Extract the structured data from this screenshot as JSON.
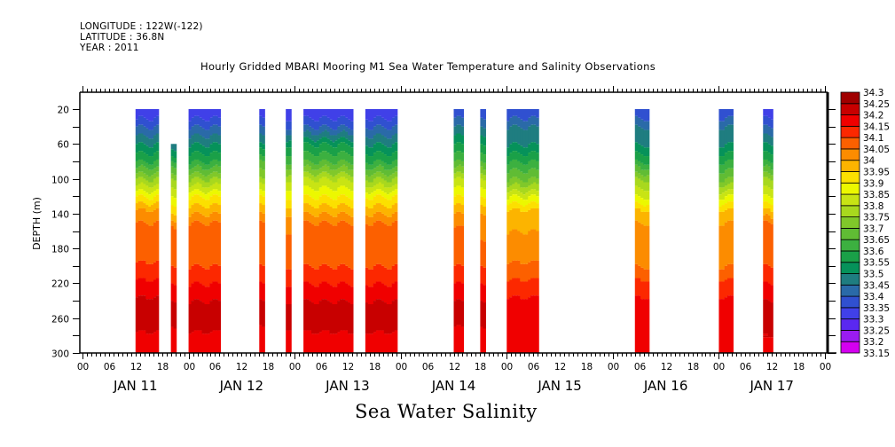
{
  "header": {
    "longitude": "LONGITUDE : 122W(-122)",
    "latitude": "LATITUDE : 36.8N",
    "year": "YEAR : 2011"
  },
  "chart_data": {
    "type": "heatmap",
    "title": "Hourly Gridded MBARI Mooring M1 Sea Water Temperature and Salinity Observations",
    "bottom_title": "Sea Water Salinity",
    "xlabel": "",
    "ylabel": "DEPTH (m)",
    "y_range": [
      0,
      300
    ],
    "y_inverted": true,
    "y_ticks": [
      20,
      60,
      100,
      140,
      180,
      220,
      260,
      300
    ],
    "x_range_hours": [
      0,
      168
    ],
    "x_tick_hours": [
      "00",
      "06",
      "12",
      "18"
    ],
    "x_days": [
      "JAN 11",
      "JAN 12",
      "JAN 13",
      "JAN 14",
      "JAN 15",
      "JAN 16",
      "JAN 17"
    ],
    "x_end_label": "00",
    "colorbar": {
      "levels": [
        33.15,
        33.2,
        33.25,
        33.3,
        33.35,
        33.4,
        33.45,
        33.5,
        33.55,
        33.6,
        33.65,
        33.7,
        33.75,
        33.8,
        33.85,
        33.9,
        33.95,
        34,
        34.05,
        34.1,
        34.15,
        34.2,
        34.25,
        34.3
      ],
      "labels": [
        "33.15",
        "33.2",
        "33.25",
        "33.3",
        "33.35",
        "33.4",
        "33.45",
        "33.5",
        "33.55",
        "33.6",
        "33.65",
        "33.7",
        "33.75",
        "33.8",
        "33.85",
        "33.9",
        "33.95",
        "34",
        "34.05",
        "34.1",
        "34.15",
        "34.2",
        "34.25",
        "34.3"
      ],
      "colors": [
        "#d400f0",
        "#9a1cf0",
        "#5a28f0",
        "#4040e8",
        "#3050d0",
        "#2a6aa8",
        "#1f7d80",
        "#06925a",
        "#1aa048",
        "#3cb040",
        "#60bc34",
        "#80c82a",
        "#a8d81e",
        "#c8e414",
        "#ecf800",
        "#fce000",
        "#fcb400",
        "#fc8c00",
        "#fc6000",
        "#fc2800",
        "#f00000",
        "#c80000",
        "#a00000"
      ]
    },
    "data_segments": [
      {
        "start_hour": 12,
        "end_hour": 17,
        "top_depth": 20,
        "profile": [
          [
            20,
            33.3
          ],
          [
            40,
            33.4
          ],
          [
            60,
            33.5
          ],
          [
            80,
            33.6
          ],
          [
            100,
            33.75
          ],
          [
            120,
            33.9
          ],
          [
            135,
            34.0
          ],
          [
            150,
            34.05
          ],
          [
            195,
            34.1
          ],
          [
            215,
            34.15
          ],
          [
            235,
            34.2
          ],
          [
            275,
            34.2
          ],
          [
            300,
            34.15
          ]
        ]
      },
      {
        "start_hour": 20,
        "end_hour": 21,
        "top_depth": 60,
        "profile": [
          [
            60,
            33.45
          ],
          [
            80,
            33.6
          ],
          [
            100,
            33.75
          ],
          [
            120,
            33.85
          ],
          [
            140,
            33.95
          ],
          [
            155,
            34.05
          ],
          [
            200,
            34.1
          ],
          [
            220,
            34.15
          ],
          [
            240,
            34.2
          ],
          [
            270,
            34.2
          ],
          [
            300,
            34.15
          ]
        ]
      },
      {
        "start_hour": 24,
        "end_hour": 31,
        "top_depth": 20,
        "profile": [
          [
            20,
            33.3
          ],
          [
            40,
            33.4
          ],
          [
            60,
            33.5
          ],
          [
            80,
            33.6
          ],
          [
            100,
            33.75
          ],
          [
            120,
            33.9
          ],
          [
            140,
            34.0
          ],
          [
            150,
            34.05
          ],
          [
            200,
            34.1
          ],
          [
            220,
            34.15
          ],
          [
            240,
            34.2
          ],
          [
            275,
            34.2
          ],
          [
            300,
            34.15
          ]
        ]
      },
      {
        "start_hour": 40,
        "end_hour": 41,
        "top_depth": 20,
        "profile": [
          [
            20,
            33.3
          ],
          [
            40,
            33.4
          ],
          [
            60,
            33.5
          ],
          [
            80,
            33.65
          ],
          [
            100,
            33.75
          ],
          [
            120,
            33.9
          ],
          [
            140,
            34.0
          ],
          [
            150,
            34.05
          ],
          [
            200,
            34.1
          ],
          [
            220,
            34.15
          ],
          [
            240,
            34.2
          ],
          [
            270,
            34.2
          ],
          [
            300,
            34.15
          ]
        ]
      },
      {
        "start_hour": 46,
        "end_hour": 47,
        "top_depth": 20,
        "profile": [
          [
            20,
            33.3
          ],
          [
            40,
            33.4
          ],
          [
            60,
            33.55
          ],
          [
            80,
            33.65
          ],
          [
            100,
            33.8
          ],
          [
            120,
            33.9
          ],
          [
            140,
            34.0
          ],
          [
            160,
            34.05
          ],
          [
            200,
            34.1
          ],
          [
            220,
            34.15
          ],
          [
            240,
            34.2
          ],
          [
            270,
            34.2
          ],
          [
            300,
            34.15
          ]
        ]
      },
      {
        "start_hour": 50,
        "end_hour": 61,
        "top_depth": 20,
        "profile": [
          [
            20,
            33.3
          ],
          [
            40,
            33.4
          ],
          [
            60,
            33.55
          ],
          [
            80,
            33.65
          ],
          [
            100,
            33.8
          ],
          [
            120,
            33.9
          ],
          [
            140,
            34.0
          ],
          [
            150,
            34.05
          ],
          [
            200,
            34.1
          ],
          [
            220,
            34.15
          ],
          [
            240,
            34.2
          ],
          [
            275,
            34.2
          ],
          [
            300,
            34.15
          ]
        ]
      },
      {
        "start_hour": 64,
        "end_hour": 71,
        "top_depth": 20,
        "profile": [
          [
            20,
            33.3
          ],
          [
            40,
            33.4
          ],
          [
            60,
            33.5
          ],
          [
            80,
            33.6
          ],
          [
            100,
            33.75
          ],
          [
            120,
            33.9
          ],
          [
            140,
            34.0
          ],
          [
            150,
            34.05
          ],
          [
            200,
            34.1
          ],
          [
            220,
            34.15
          ],
          [
            240,
            34.2
          ],
          [
            275,
            34.2
          ],
          [
            300,
            34.15
          ]
        ]
      },
      {
        "start_hour": 84,
        "end_hour": 86,
        "top_depth": 20,
        "profile": [
          [
            20,
            33.35
          ],
          [
            40,
            33.45
          ],
          [
            60,
            33.55
          ],
          [
            80,
            33.65
          ],
          [
            100,
            33.8
          ],
          [
            120,
            33.9
          ],
          [
            140,
            34.0
          ],
          [
            155,
            34.05
          ],
          [
            200,
            34.1
          ],
          [
            220,
            34.15
          ],
          [
            240,
            34.2
          ],
          [
            270,
            34.2
          ],
          [
            300,
            34.15
          ]
        ]
      },
      {
        "start_hour": 90,
        "end_hour": 91,
        "top_depth": 20,
        "profile": [
          [
            20,
            33.35
          ],
          [
            40,
            33.45
          ],
          [
            60,
            33.55
          ],
          [
            80,
            33.65
          ],
          [
            100,
            33.8
          ],
          [
            120,
            33.9
          ],
          [
            140,
            34.0
          ],
          [
            170,
            34.05
          ],
          [
            200,
            34.1
          ],
          [
            220,
            34.15
          ],
          [
            240,
            34.2
          ],
          [
            270,
            34.2
          ],
          [
            300,
            34.15
          ]
        ]
      },
      {
        "start_hour": 96,
        "end_hour": 103,
        "top_depth": 20,
        "profile": [
          [
            20,
            33.35
          ],
          [
            40,
            33.45
          ],
          [
            60,
            33.5
          ],
          [
            80,
            33.6
          ],
          [
            100,
            33.7
          ],
          [
            120,
            33.85
          ],
          [
            135,
            33.95
          ],
          [
            160,
            34.0
          ],
          [
            195,
            34.05
          ],
          [
            215,
            34.1
          ],
          [
            235,
            34.15
          ],
          [
            260,
            34.2
          ],
          [
            300,
            34.15
          ]
        ]
      },
      {
        "start_hour": 125,
        "end_hour": 128,
        "top_depth": 20,
        "profile": [
          [
            20,
            33.35
          ],
          [
            40,
            33.45
          ],
          [
            60,
            33.5
          ],
          [
            80,
            33.6
          ],
          [
            100,
            33.75
          ],
          [
            120,
            33.85
          ],
          [
            135,
            33.95
          ],
          [
            150,
            34.0
          ],
          [
            200,
            34.05
          ],
          [
            215,
            34.1
          ],
          [
            235,
            34.15
          ],
          [
            260,
            34.2
          ],
          [
            300,
            34.15
          ]
        ]
      },
      {
        "start_hour": 144,
        "end_hour": 147,
        "top_depth": 20,
        "profile": [
          [
            20,
            33.35
          ],
          [
            40,
            33.45
          ],
          [
            60,
            33.5
          ],
          [
            80,
            33.6
          ],
          [
            100,
            33.7
          ],
          [
            120,
            33.85
          ],
          [
            135,
            33.95
          ],
          [
            150,
            34.0
          ],
          [
            200,
            34.05
          ],
          [
            215,
            34.1
          ],
          [
            235,
            34.15
          ],
          [
            260,
            34.2
          ],
          [
            300,
            34.15
          ]
        ]
      },
      {
        "start_hour": 154,
        "end_hour": 156,
        "top_depth": 20,
        "profile": [
          [
            20,
            33.3
          ],
          [
            40,
            33.4
          ],
          [
            60,
            33.5
          ],
          [
            80,
            33.6
          ],
          [
            100,
            33.75
          ],
          [
            120,
            33.85
          ],
          [
            135,
            33.95
          ],
          [
            150,
            34.05
          ],
          [
            200,
            34.1
          ],
          [
            220,
            34.15
          ],
          [
            240,
            34.2
          ],
          [
            280,
            34.2
          ],
          [
            300,
            34.15
          ]
        ]
      }
    ]
  }
}
